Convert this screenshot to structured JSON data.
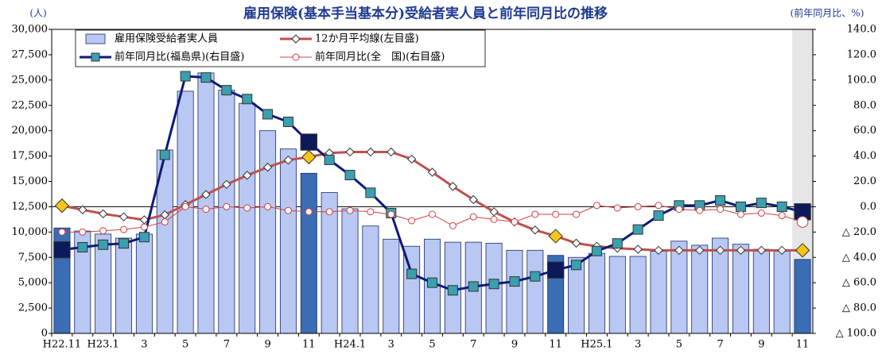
{
  "chart_data": {
    "type": "bar",
    "title": "雇用保険(基本手当基本分)受給者実人員と前年同月比の推移",
    "y_label": "(人)",
    "y2_label": "(前年同月比、%)",
    "categories": [
      "H22.11",
      null,
      "H23.1",
      null,
      "3",
      null,
      "5",
      null,
      "7",
      null,
      "9",
      null,
      "11",
      null,
      "H24.1",
      null,
      "3",
      null,
      "5",
      null,
      "7",
      null,
      "9",
      null,
      "11",
      null,
      "H25.1",
      null,
      "3",
      null,
      "5",
      null,
      "7",
      null,
      "9",
      null,
      "11"
    ],
    "ylim": [
      0,
      30000
    ],
    "yticks": [
      0,
      {
        "value": 2500,
        "label": "2,500"
      },
      {
        "value": 5000,
        "label": "5,000"
      },
      {
        "value": 7500,
        "label": "7,500"
      },
      {
        "value": 10000,
        "label": "10,000"
      },
      {
        "value": 12500,
        "label": "12,500"
      },
      {
        "value": 15000,
        "label": "15,000"
      },
      {
        "value": 17500,
        "label": "17,500"
      },
      {
        "value": 20000,
        "label": "20,000"
      },
      {
        "value": 22500,
        "label": "22,500"
      },
      {
        "value": 25000,
        "label": "25,000"
      },
      {
        "value": 27500,
        "label": "27,500"
      },
      {
        "value": 30000,
        "label": "30,000"
      }
    ],
    "y2lim": [
      -100,
      140
    ],
    "y2ticks": [
      {
        "value": -100,
        "label": "△ 100.0"
      },
      {
        "value": -80,
        "label": "△ 80.0"
      },
      {
        "value": -60,
        "label": "△ 60.0"
      },
      {
        "value": -40,
        "label": "△ 40.0"
      },
      {
        "value": -20,
        "label": "△ 20.0"
      },
      {
        "value": 0,
        "label": "0.0"
      },
      {
        "value": 20,
        "label": "20.0"
      },
      {
        "value": 40,
        "label": "40.0"
      },
      {
        "value": 60,
        "label": "60.0"
      },
      {
        "value": 80,
        "label": "80.0"
      },
      {
        "value": 100,
        "label": "100.0"
      },
      {
        "value": 120,
        "label": "120.0"
      },
      {
        "value": 140,
        "label": "140.0"
      }
    ],
    "series": [
      {
        "name": "雇用保険受給者実人員",
        "type": "bar",
        "color": "#b8c8f2",
        "highlight_fill": "#3a6db3",
        "highlight": [
          0,
          12,
          24,
          36
        ],
        "values": [
          10400,
          10100,
          9800,
          9400,
          9800,
          18100,
          23900,
          25700,
          24000,
          22700,
          20000,
          18200,
          15800,
          13900,
          12300,
          10600,
          9300,
          8600,
          9300,
          9000,
          9000,
          8900,
          8200,
          8200,
          7700,
          7500,
          7900,
          7600,
          7600,
          8100,
          9100,
          8700,
          9400,
          8800,
          8300,
          8100,
          7300
        ]
      },
      {
        "name": "12か月平均線(左目盛)",
        "type": "line",
        "color": "#c0504d",
        "width": 3,
        "marker": "diamond",
        "marker_fill": "#ffffff",
        "highlight_fill": "#f5c518",
        "highlight": [
          0,
          12,
          24,
          36
        ],
        "values": [
          12600,
          12200,
          11800,
          11500,
          11200,
          11700,
          12700,
          13700,
          14700,
          15600,
          16400,
          17100,
          17400,
          17800,
          17900,
          17900,
          17900,
          17200,
          15900,
          14500,
          13200,
          12000,
          11000,
          10200,
          9600,
          8900,
          8600,
          8400,
          8300,
          8200,
          8200,
          8200,
          8200,
          8200,
          8200,
          8200,
          8200
        ]
      },
      {
        "name": "前年同月比(福島県)(右目盛)",
        "type": "line",
        "axis": "y2",
        "color": "#0c1a7a",
        "width": 3,
        "marker": "square",
        "marker_fill": "#3aa0b0",
        "highlight_fill": "#0c1a5a",
        "highlight": [
          0,
          12,
          24,
          36
        ],
        "values": [
          -34,
          -32,
          -30,
          -29,
          -24,
          41,
          103,
          102,
          92,
          85,
          73,
          67,
          51,
          37,
          25,
          11,
          -5,
          -53,
          -60,
          -66,
          -63,
          -61,
          -59,
          -55,
          -50,
          -46,
          -35,
          -29,
          -18,
          -7,
          1,
          1,
          5,
          0,
          3,
          0,
          -4
        ]
      },
      {
        "name": "前年同月比(全　国)(右目盛)",
        "type": "line",
        "axis": "y2",
        "color": "#d04040",
        "width": 1,
        "marker": "circle",
        "marker_fill": "#ffffff",
        "highlight_fill": "#ffffff",
        "highlight": [
          36
        ],
        "values": [
          -20,
          -20,
          -19,
          -18,
          -16,
          -12,
          0,
          -2,
          0,
          -1,
          0,
          -3,
          -4,
          -4,
          -3,
          -4,
          -6,
          -11,
          -6,
          -15,
          -8,
          -10,
          -12,
          -6,
          -6,
          -6,
          1,
          -1,
          0,
          1,
          -2,
          -3,
          -2,
          -6,
          -5,
          -7,
          -12
        ]
      }
    ]
  }
}
